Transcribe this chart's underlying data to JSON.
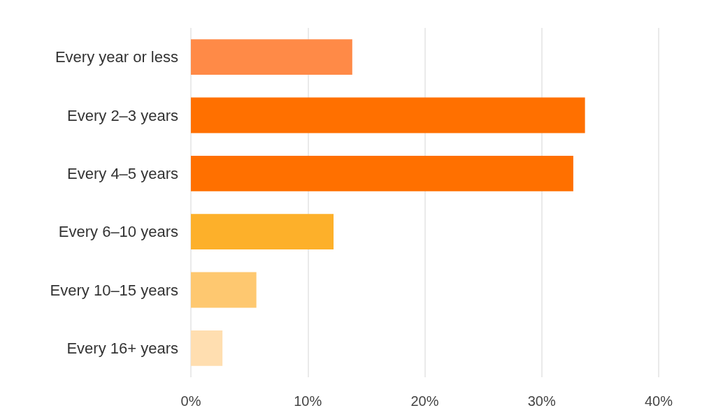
{
  "chart_data": {
    "type": "bar",
    "orientation": "horizontal",
    "categories": [
      "Every year or less",
      "Every 2–3 years",
      "Every 4–5 years",
      "Every 6–10 years",
      "Every 10–15 years",
      "Every 16+ years"
    ],
    "values": [
      13.8,
      33.7,
      32.7,
      12.2,
      5.6,
      2.7
    ],
    "colors": [
      "#ff8a47",
      "#ff7000",
      "#ff7000",
      "#fdb02a",
      "#fec870",
      "#ffdeb0"
    ],
    "xlim": [
      0,
      40
    ],
    "xticks": [
      {
        "value": 0,
        "label": "0%"
      },
      {
        "value": 10,
        "label": "10%"
      },
      {
        "value": 20,
        "label": "20%"
      },
      {
        "value": 30,
        "label": "30%"
      },
      {
        "value": 40,
        "label": "40%"
      }
    ],
    "grid": "x"
  }
}
